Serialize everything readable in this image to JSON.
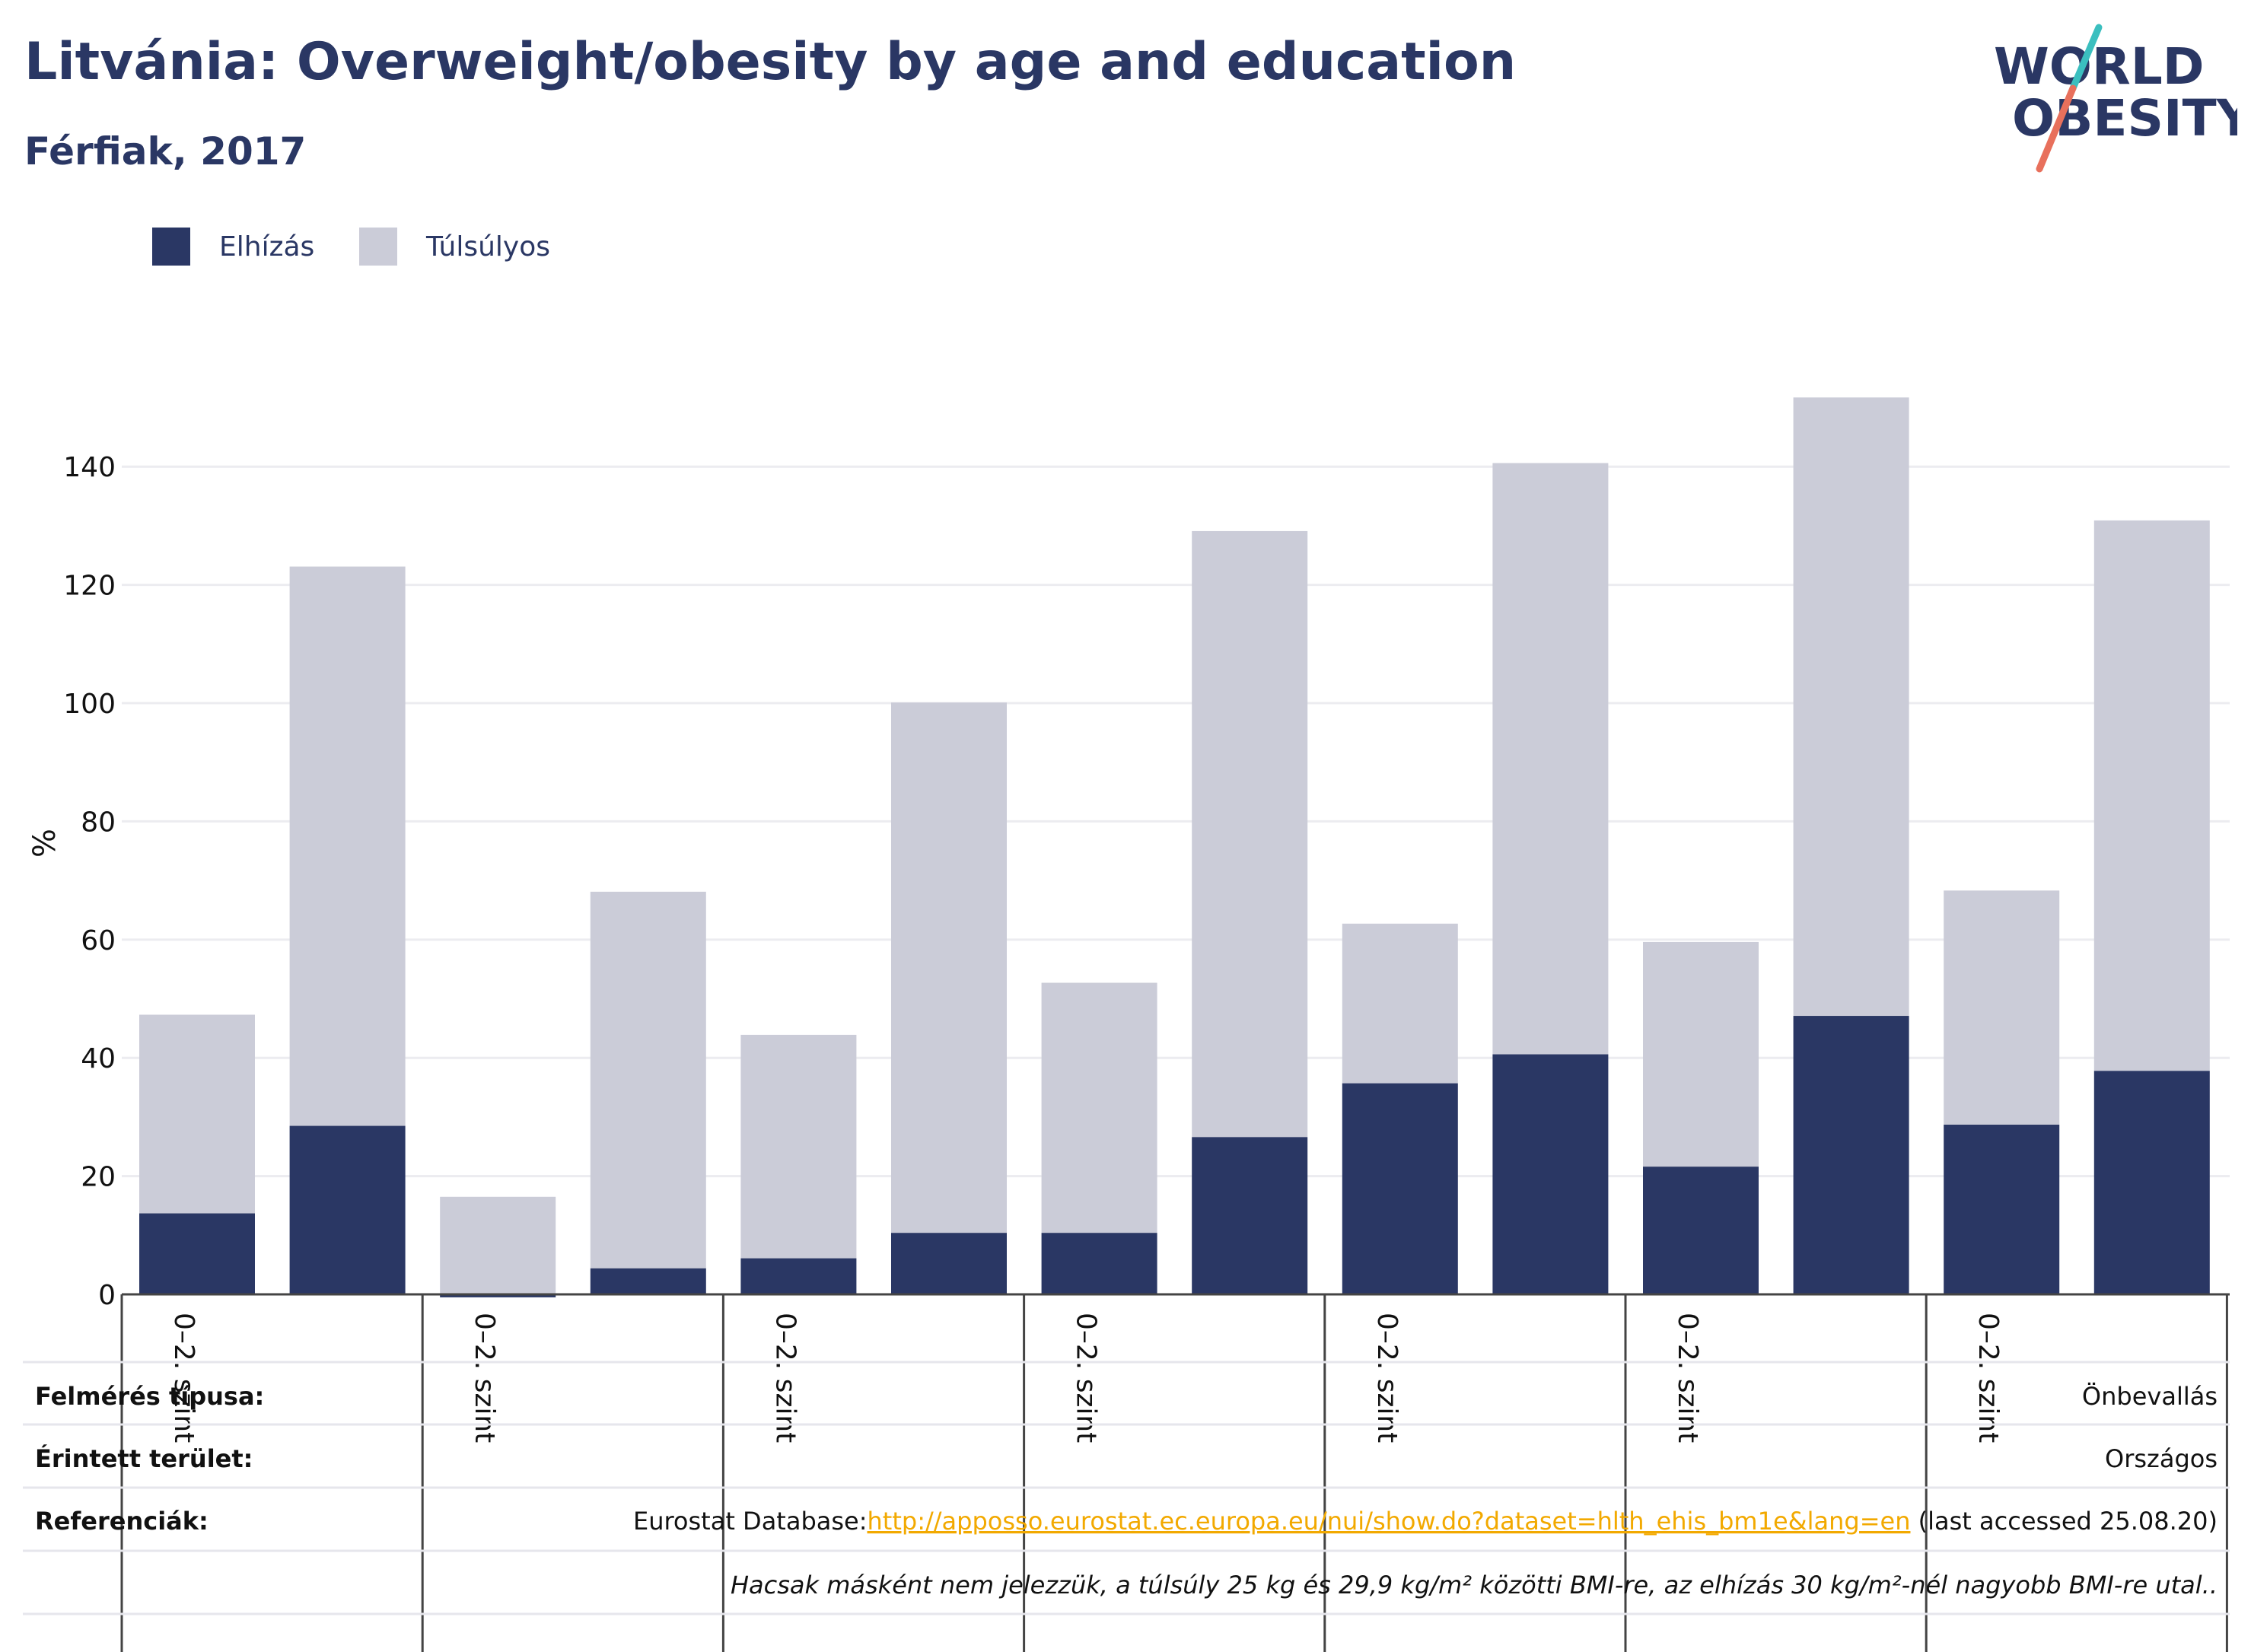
{
  "header": {
    "title": "Litvánia: Overweight/obesity by age and education",
    "subtitle": "Férfiak, 2017"
  },
  "logo": {
    "line1": "WORLD",
    "line2": "OBESITY",
    "slash_colors": [
      "#e8705c",
      "#3bbfbf"
    ]
  },
  "colors": {
    "obesity": "#2a3764",
    "overweight": "#cbccd8",
    "text": "#2a3764",
    "link": "#f2a900"
  },
  "chart_data": {
    "type": "bar",
    "stacked": true,
    "ylabel": "%",
    "ylim": [
      0,
      152
    ],
    "yticks": [
      0,
      20,
      40,
      60,
      80,
      100,
      120,
      140
    ],
    "grid": true,
    "legend_position": "top-left",
    "group_labels": [
      "0–2. szint",
      "0–2. szint",
      "0–2. szint",
      "0–2. szint",
      "0–2. szint",
      "0–2. szint",
      "0–2. szint"
    ],
    "series": [
      {
        "name": "Elhízás",
        "values": [
          13.7,
          28.5,
          -0.5,
          4.4,
          6.1,
          10.4,
          10.4,
          26.6,
          35.7,
          40.6,
          21.6,
          47.1,
          28.7,
          37.8
        ]
      },
      {
        "name": "Túlsúlyos",
        "values": [
          33.6,
          94.6,
          17.0,
          63.7,
          37.8,
          89.7,
          42.3,
          102.5,
          27.0,
          100.0,
          38.0,
          104.6,
          39.6,
          93.1
        ]
      }
    ]
  },
  "metadata": {
    "survey_type": {
      "label": "Felmérés típusa:",
      "value": "Önbevallás"
    },
    "area": {
      "label": "Érintett terület:",
      "value": "Országos"
    },
    "references": {
      "label": "Referenciák:",
      "prefix": "Eurostat Database:",
      "url": "http://apposso.eurostat.ec.europa.eu/nui/show.do?dataset=hlth_ehis_bm1e&lang=en",
      "suffix": " (last accessed 25.08.20)"
    },
    "note": "Hacsak másként nem jelezzük, a túlsúly 25 kg és 29,9 kg/m² közötti BMI-re, az elhízás 30 kg/m²-nél nagyobb BMI-re utal.."
  }
}
